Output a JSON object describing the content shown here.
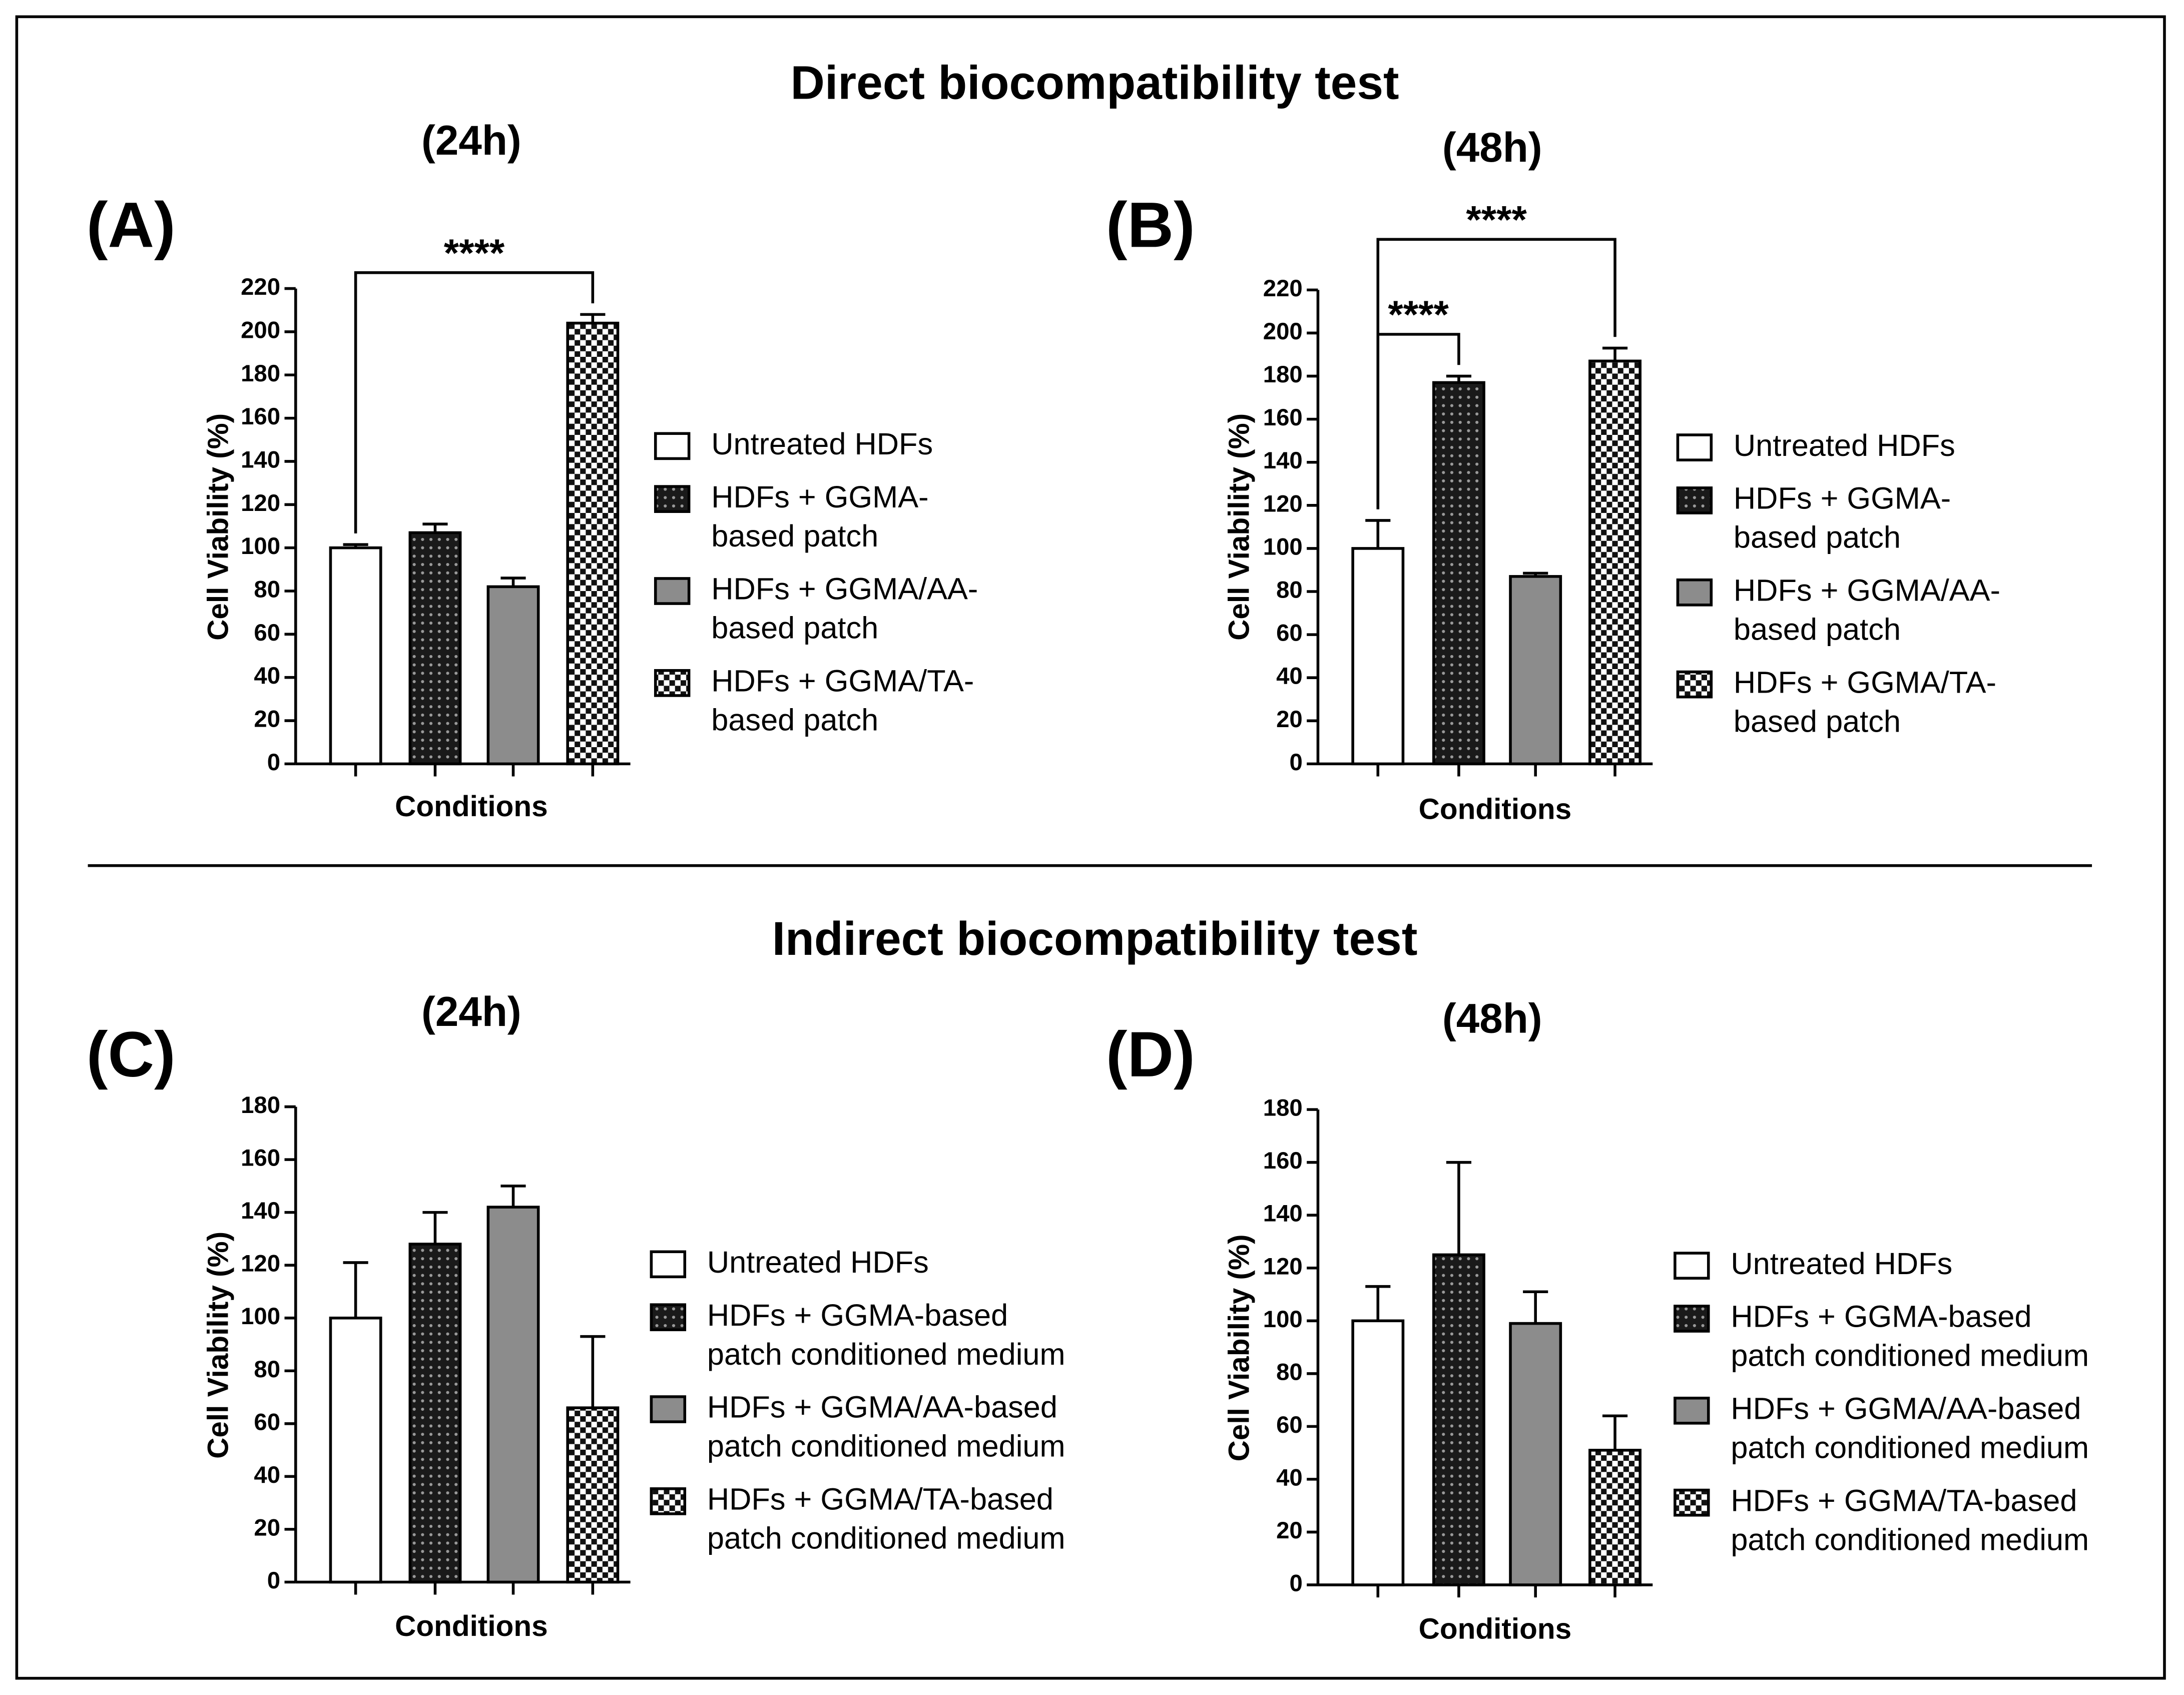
{
  "headings": [
    "Direct biocompatibility test",
    "Indirect biocompatibility test"
  ],
  "chart_data": [
    {
      "type": "bar",
      "panel_label": "(A)",
      "subtitle": "(24h)",
      "xlabel": "Conditions",
      "ylabel": "Cell Viability (%)",
      "categories": [
        null
      ],
      "ylim": [
        0,
        220
      ],
      "yticks": [
        0,
        20,
        40,
        60,
        80,
        100,
        120,
        140,
        160,
        180,
        200,
        220
      ],
      "series": [
        {
          "name": "Untreated HDFs",
          "color": "#ffffff",
          "pattern": "none",
          "values": [
            100
          ],
          "errors": [
            1.5
          ]
        },
        {
          "name": "HDFs + GGMA-\nbased patch",
          "color": "#1a1a1a",
          "pattern": "dots",
          "values": [
            107
          ],
          "errors": [
            4
          ]
        },
        {
          "name": "HDFs + GGMA/AA-\nbased patch",
          "color": "#8c8c8c",
          "pattern": "none",
          "values": [
            82
          ],
          "errors": [
            4
          ]
        },
        {
          "name": "HDFs + GGMA/TA-\nbased patch",
          "color": "#ffffff",
          "pattern": "checker",
          "values": [
            204
          ],
          "errors": [
            4
          ]
        }
      ],
      "annotations": [
        {
          "text": "****",
          "from": 0,
          "to": 3
        }
      ]
    },
    {
      "type": "bar",
      "panel_label": "(B)",
      "subtitle": "(48h)",
      "xlabel": "Conditions",
      "ylabel": "Cell Viability (%)",
      "categories": [
        null
      ],
      "ylim": [
        0,
        220
      ],
      "yticks": [
        0,
        20,
        40,
        60,
        80,
        100,
        120,
        140,
        160,
        180,
        200,
        220
      ],
      "series": [
        {
          "name": "Untreated HDFs",
          "color": "#ffffff",
          "pattern": "none",
          "values": [
            100
          ],
          "errors": [
            13
          ]
        },
        {
          "name": "HDFs + GGMA-\nbased patch",
          "color": "#1a1a1a",
          "pattern": "dots",
          "values": [
            177
          ],
          "errors": [
            3
          ]
        },
        {
          "name": "HDFs + GGMA/AA-\nbased patch",
          "color": "#8c8c8c",
          "pattern": "none",
          "values": [
            87
          ],
          "errors": [
            1.5
          ]
        },
        {
          "name": "HDFs + GGMA/TA-\nbased patch",
          "color": "#ffffff",
          "pattern": "checker",
          "values": [
            187
          ],
          "errors": [
            6
          ]
        }
      ],
      "annotations": [
        {
          "text": "****",
          "from": 0,
          "to": 1
        },
        {
          "text": "****",
          "from": 0,
          "to": 3
        }
      ]
    },
    {
      "type": "bar",
      "panel_label": "(C)",
      "subtitle": "(24h)",
      "xlabel": "Conditions",
      "ylabel": "Cell Viability (%)",
      "categories": [
        null
      ],
      "ylim": [
        0,
        180
      ],
      "yticks": [
        0,
        20,
        40,
        60,
        80,
        100,
        120,
        140,
        160,
        180
      ],
      "series": [
        {
          "name": "Untreated HDFs",
          "color": "#ffffff",
          "pattern": "none",
          "values": [
            100
          ],
          "errors": [
            21
          ]
        },
        {
          "name": "HDFs + GGMA-based\npatch conditioned medium",
          "color": "#1a1a1a",
          "pattern": "dots",
          "values": [
            128
          ],
          "errors": [
            12
          ]
        },
        {
          "name": "HDFs + GGMA/AA-based\npatch conditioned medium",
          "color": "#8c8c8c",
          "pattern": "none",
          "values": [
            142
          ],
          "errors": [
            8
          ]
        },
        {
          "name": "HDFs + GGMA/TA-based\npatch conditioned medium",
          "color": "#ffffff",
          "pattern": "checker",
          "values": [
            66
          ],
          "errors": [
            27
          ]
        }
      ]
    },
    {
      "type": "bar",
      "panel_label": "(D)",
      "subtitle": "(48h)",
      "xlabel": "Conditions",
      "ylabel": "Cell Viability (%)",
      "categories": [
        null
      ],
      "ylim": [
        0,
        180
      ],
      "yticks": [
        0,
        20,
        40,
        60,
        80,
        100,
        120,
        140,
        160,
        180
      ],
      "series": [
        {
          "name": "Untreated HDFs",
          "color": "#ffffff",
          "pattern": "none",
          "values": [
            100
          ],
          "errors": [
            13
          ]
        },
        {
          "name": "HDFs + GGMA-based\npatch conditioned medium",
          "color": "#1a1a1a",
          "pattern": "dots",
          "values": [
            125
          ],
          "errors": [
            35
          ]
        },
        {
          "name": "HDFs + GGMA/AA-based\npatch conditioned medium",
          "color": "#8c8c8c",
          "pattern": "none",
          "values": [
            99
          ],
          "errors": [
            12
          ]
        },
        {
          "name": "HDFs + GGMA/TA-based\npatch conditioned medium",
          "color": "#ffffff",
          "pattern": "checker",
          "values": [
            51
          ],
          "errors": [
            13
          ]
        }
      ]
    }
  ]
}
